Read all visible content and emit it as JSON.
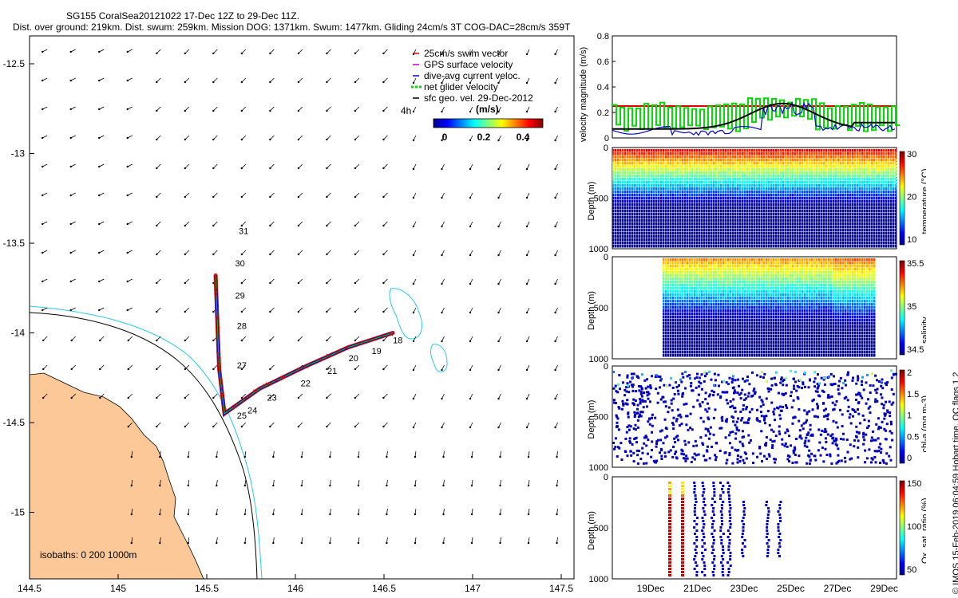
{
  "header": {
    "line1": "SG155 CoralSea20121022 17-Dec 12Z to 29-Dec 11Z.",
    "line2": "Dist. over ground: 219km. Dist. swum: 259km. Mission DOG: 1371km. Swum: 1477km. Gliding 24cm/s 3T COG-DAC=28cm/s 359T"
  },
  "map": {
    "xticks": [
      "144.5",
      "145",
      "145.5",
      "146",
      "146.5",
      "147",
      "147.5"
    ],
    "yticks": [
      "-12.5",
      "-13",
      "-13.5",
      "-14",
      "-14.5",
      "-15"
    ],
    "isobaths_label": "isobaths: 0   200  1000m",
    "legend": [
      {
        "label": "25cm/s swim vector",
        "color": "#e00000"
      },
      {
        "label": "GPS surface velocity",
        "color": "#cc00cc"
      },
      {
        "label": "dive-avg current veloc.",
        "color": "#0000dd"
      },
      {
        "label": "net glider velocity",
        "color": "#00dd00"
      },
      {
        "label": "sfc geo. vel. 29-Dec-2012",
        "color": "#000000"
      }
    ],
    "colorbar": {
      "title": "(m/s)",
      "ticks": [
        "0",
        "0.2",
        "0.4"
      ],
      "left_label": "4h"
    },
    "day_labels": [
      {
        "d": "18",
        "lon": 146.55,
        "lat": -14.04
      },
      {
        "d": "19",
        "lon": 146.43,
        "lat": -14.1
      },
      {
        "d": "20",
        "lon": 146.3,
        "lat": -14.14
      },
      {
        "d": "21",
        "lon": 146.18,
        "lat": -14.21
      },
      {
        "d": "22",
        "lon": 146.03,
        "lat": -14.28
      },
      {
        "d": "23",
        "lon": 145.84,
        "lat": -14.36
      },
      {
        "d": "24",
        "lon": 145.73,
        "lat": -14.43
      },
      {
        "d": "25",
        "lon": 145.67,
        "lat": -14.46
      },
      {
        "d": "27",
        "lon": 145.67,
        "lat": -14.18
      },
      {
        "d": "28",
        "lon": 145.67,
        "lat": -13.96
      },
      {
        "d": "29",
        "lon": 145.66,
        "lat": -13.79
      },
      {
        "d": "30",
        "lon": 145.66,
        "lat": -13.61
      },
      {
        "d": "31",
        "lon": 145.68,
        "lat": -13.43
      }
    ],
    "track": [
      [
        146.55,
        -14.0
      ],
      [
        146.3,
        -14.08
      ],
      [
        146.05,
        -14.19
      ],
      [
        145.8,
        -14.31
      ],
      [
        145.6,
        -14.45
      ],
      [
        145.57,
        -14.2
      ],
      [
        145.56,
        -13.95
      ],
      [
        145.55,
        -13.68
      ]
    ]
  },
  "velocity_panel": {
    "ylabel": "velocity magnitude (m/s)",
    "yticks": [
      "0",
      "0.2",
      "0.4",
      "0.6",
      "0.8"
    ],
    "red_level": 0.25
  },
  "profile_panels": [
    {
      "name": "temperature",
      "label": "temperature (°C)",
      "ticks": [
        "30",
        "20",
        "10"
      ]
    },
    {
      "name": "salinity",
      "label": "salinity",
      "ticks": [
        "35.5",
        "35",
        "34.5"
      ]
    },
    {
      "name": "chla",
      "label": "chl-a (mg m-3)",
      "ticks": [
        "2",
        "1.5",
        "1",
        "0.5",
        "0"
      ]
    },
    {
      "name": "oxygen",
      "label": "Ox. sat. ratio (%)",
      "ticks": [
        "150",
        "100",
        "50"
      ]
    }
  ],
  "depth_label": "Depth (m)",
  "depth_ticks": [
    "0",
    "500",
    "1000"
  ],
  "date_ticks": [
    "19Dec",
    "21Dec",
    "23Dec",
    "25Dec",
    "27Dec",
    "29Dec"
  ],
  "footer": "© IMOS 15-Feb-2019 06:04:59 Hobart time. QC flags 1  2"
}
